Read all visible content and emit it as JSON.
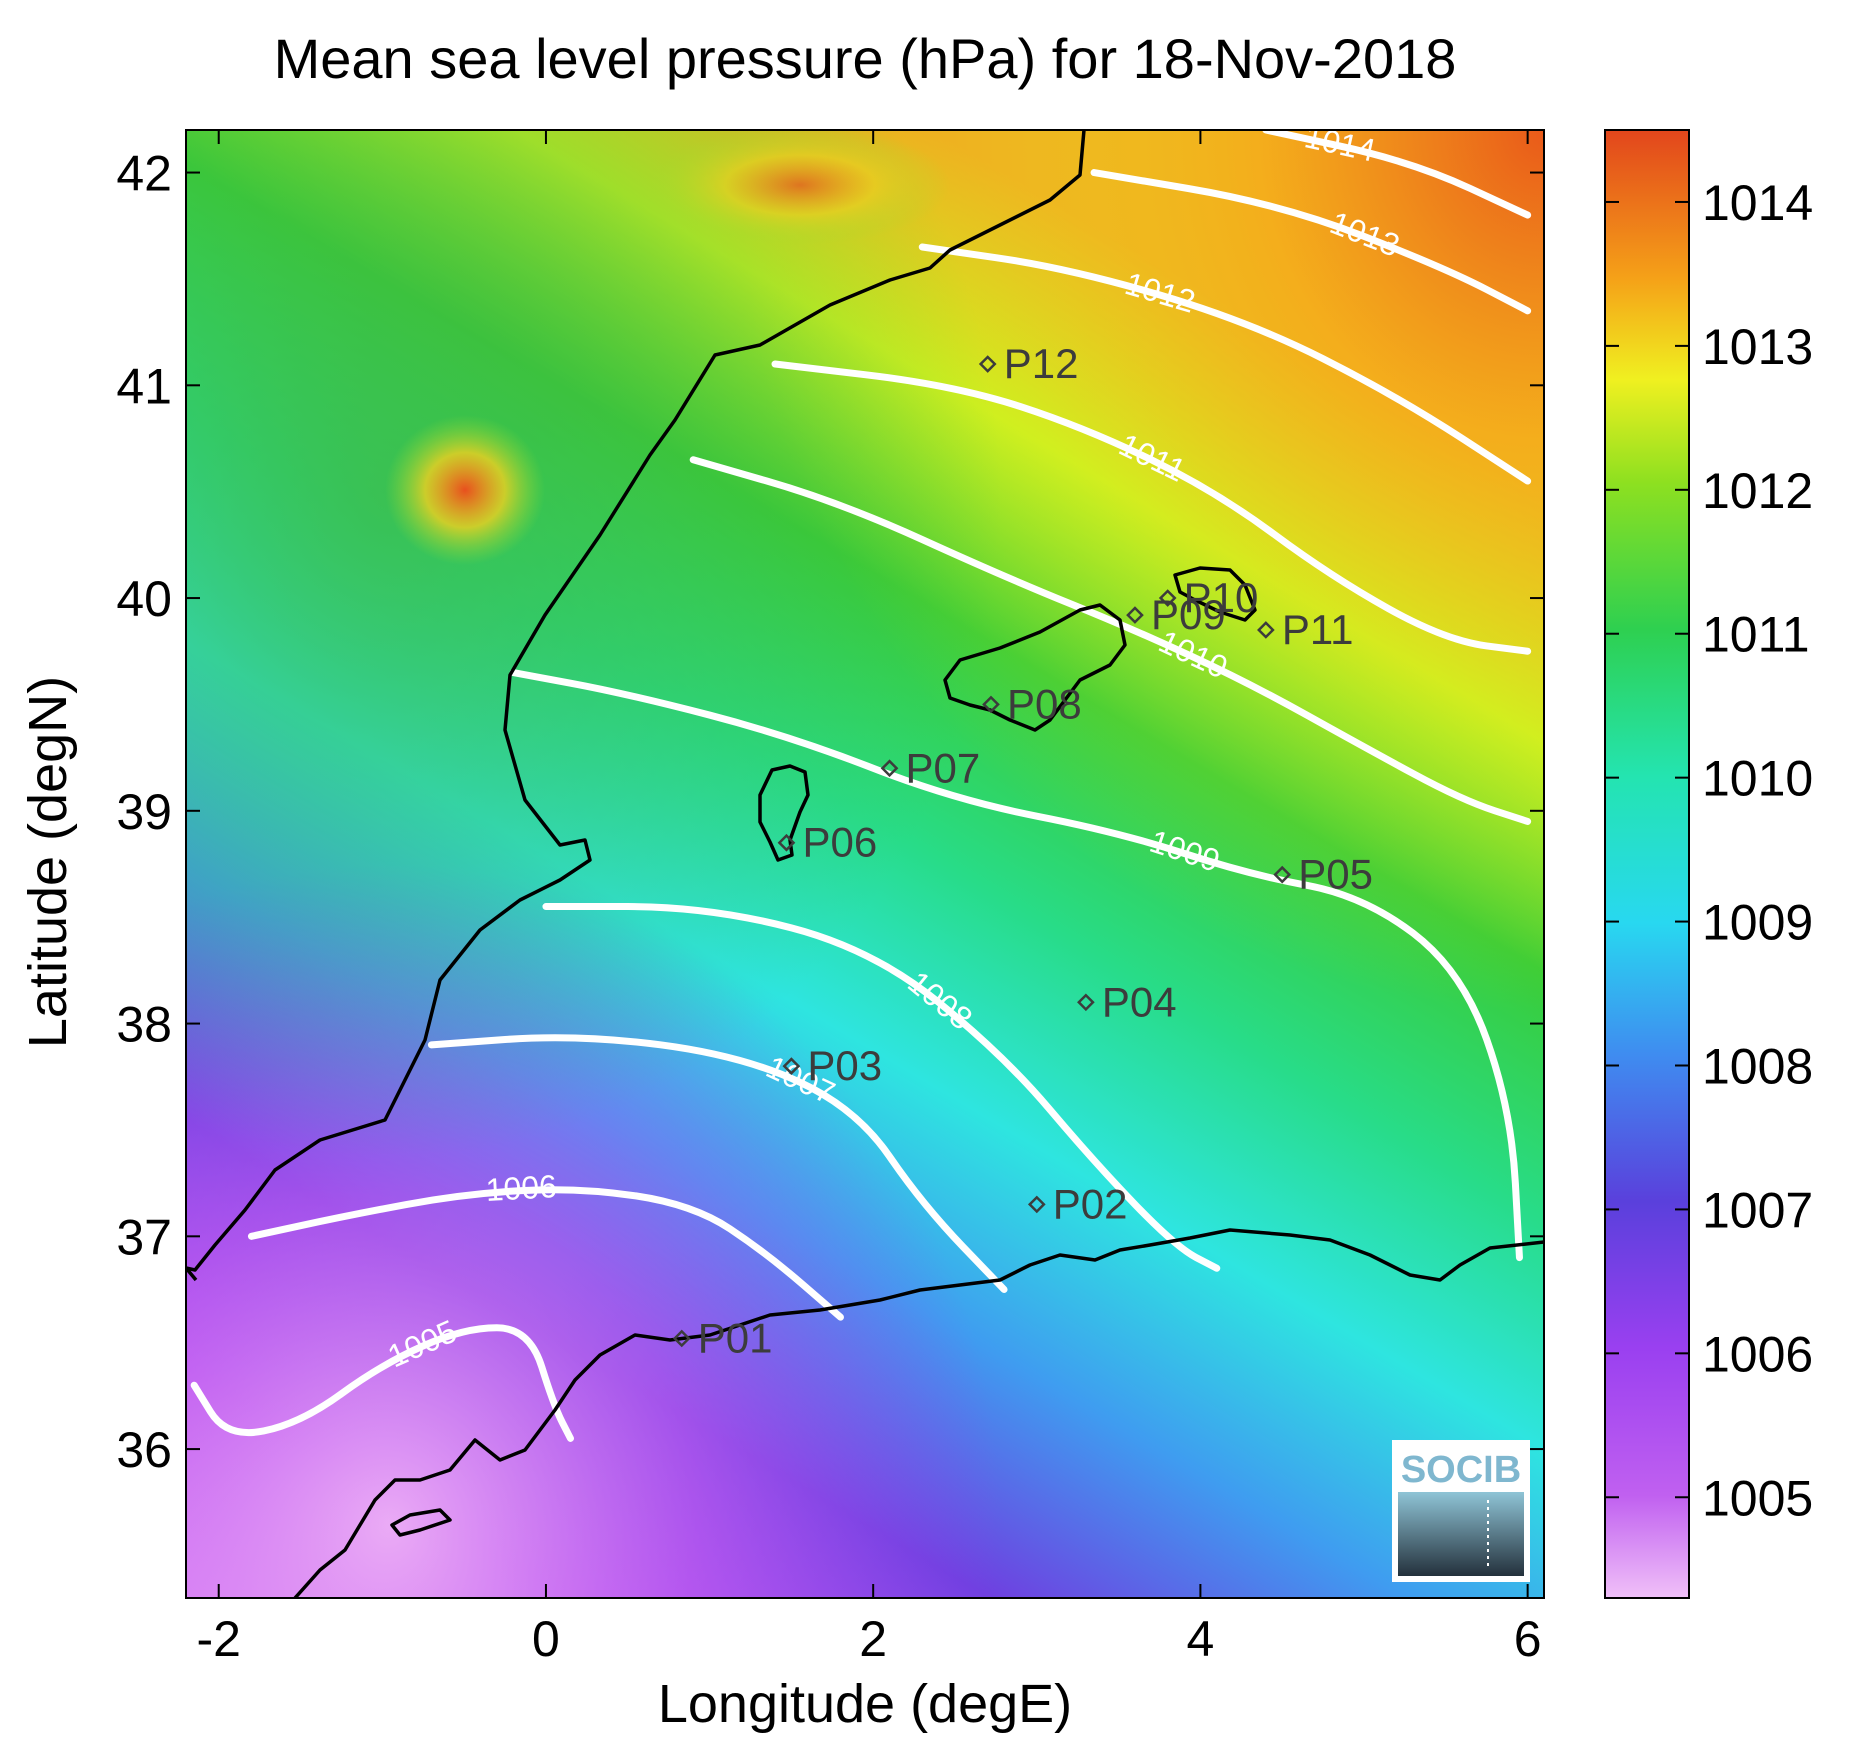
{
  "chart_data": {
    "type": "heatmap",
    "title": "Mean sea level pressure (hPa) for 18-Nov-2018",
    "xlabel": "Longitude (degE)",
    "ylabel": "Latitude (degN)",
    "xlim": [
      -2.2,
      6.1
    ],
    "ylim": [
      35.3,
      42.2
    ],
    "x_ticks": [
      -2,
      0,
      2,
      4,
      6
    ],
    "y_ticks": [
      36,
      37,
      38,
      39,
      40,
      41,
      42
    ],
    "colorbar": {
      "ticks": [
        1005,
        1006,
        1007,
        1008,
        1009,
        1010,
        1011,
        1012,
        1013,
        1014
      ],
      "range": [
        1004.3,
        1014.5
      ]
    },
    "contours": [
      {
        "level": 1005,
        "label": "1005",
        "points": [
          [
            -2.15,
            36.3
          ],
          [
            -1.95,
            36.05
          ],
          [
            -1.5,
            36.12
          ],
          [
            -1.0,
            36.4
          ],
          [
            -0.5,
            36.57
          ],
          [
            -0.1,
            36.57
          ],
          [
            0.05,
            36.2
          ],
          [
            0.15,
            36.05
          ]
        ]
      },
      {
        "level": 1006,
        "label": "1006",
        "points": [
          [
            -1.8,
            37.0
          ],
          [
            -1.2,
            37.1
          ],
          [
            -0.5,
            37.2
          ],
          [
            0.2,
            37.23
          ],
          [
            0.9,
            37.15
          ],
          [
            1.35,
            36.92
          ],
          [
            1.8,
            36.62
          ]
        ]
      },
      {
        "level": 1007,
        "label": "1007",
        "points": [
          [
            -0.7,
            37.9
          ],
          [
            0.2,
            37.95
          ],
          [
            1.2,
            37.85
          ],
          [
            1.9,
            37.6
          ],
          [
            2.3,
            37.15
          ],
          [
            2.8,
            36.75
          ]
        ]
      },
      {
        "level": 1008,
        "label": "1008",
        "points": [
          [
            0.0,
            38.55
          ],
          [
            1.0,
            38.55
          ],
          [
            2.0,
            38.35
          ],
          [
            2.8,
            37.85
          ],
          [
            3.35,
            37.35
          ],
          [
            3.85,
            36.95
          ],
          [
            4.1,
            36.85
          ]
        ]
      },
      {
        "level": 1009,
        "label": "1009",
        "points": [
          [
            -0.2,
            39.65
          ],
          [
            0.5,
            39.55
          ],
          [
            1.5,
            39.35
          ],
          [
            2.5,
            39.05
          ],
          [
            3.5,
            38.9
          ],
          [
            4.3,
            38.7
          ],
          [
            5.0,
            38.6
          ],
          [
            5.6,
            38.25
          ],
          [
            5.9,
            37.6
          ],
          [
            5.95,
            36.9
          ]
        ]
      },
      {
        "level": 1010,
        "label": "1010",
        "points": [
          [
            0.9,
            40.65
          ],
          [
            1.8,
            40.45
          ],
          [
            2.8,
            40.1
          ],
          [
            3.6,
            39.85
          ],
          [
            4.3,
            39.6
          ],
          [
            5.0,
            39.3
          ],
          [
            5.6,
            39.05
          ],
          [
            6.0,
            38.95
          ]
        ]
      },
      {
        "level": 1011,
        "label": "1011",
        "points": [
          [
            1.4,
            41.1
          ],
          [
            2.5,
            41.0
          ],
          [
            3.3,
            40.8
          ],
          [
            4.1,
            40.5
          ],
          [
            4.8,
            40.1
          ],
          [
            5.5,
            39.8
          ],
          [
            6.0,
            39.75
          ]
        ]
      },
      {
        "level": 1012,
        "label": "1012",
        "points": [
          [
            2.3,
            41.65
          ],
          [
            3.2,
            41.55
          ],
          [
            4.3,
            41.3
          ],
          [
            5.2,
            40.95
          ],
          [
            6.0,
            40.55
          ]
        ]
      },
      {
        "level": 1013,
        "label": "1013",
        "points": [
          [
            3.35,
            42.0
          ],
          [
            4.5,
            41.85
          ],
          [
            5.5,
            41.55
          ],
          [
            6.0,
            41.35
          ]
        ]
      },
      {
        "level": 1014,
        "label": "1014",
        "points": [
          [
            4.4,
            42.2
          ],
          [
            5.3,
            42.05
          ],
          [
            6.0,
            41.8
          ]
        ]
      }
    ],
    "points": [
      {
        "name": "P01",
        "lon": 0.83,
        "lat": 36.52
      },
      {
        "name": "P02",
        "lon": 3.0,
        "lat": 37.15
      },
      {
        "name": "P03",
        "lon": 1.5,
        "lat": 37.8
      },
      {
        "name": "P04",
        "lon": 3.3,
        "lat": 38.1
      },
      {
        "name": "P05",
        "lon": 4.5,
        "lat": 38.7
      },
      {
        "name": "P06",
        "lon": 1.47,
        "lat": 38.85
      },
      {
        "name": "P07",
        "lon": 2.1,
        "lat": 39.2
      },
      {
        "name": "P08",
        "lon": 2.72,
        "lat": 39.5
      },
      {
        "name": "P09",
        "lon": 3.6,
        "lat": 39.92
      },
      {
        "name": "P10",
        "lon": 3.8,
        "lat": 40.0
      },
      {
        "name": "P11",
        "lon": 4.4,
        "lat": 39.85
      },
      {
        "name": "P12",
        "lon": 2.7,
        "lat": 41.1
      }
    ]
  },
  "logo": {
    "text": "SOCIB"
  }
}
